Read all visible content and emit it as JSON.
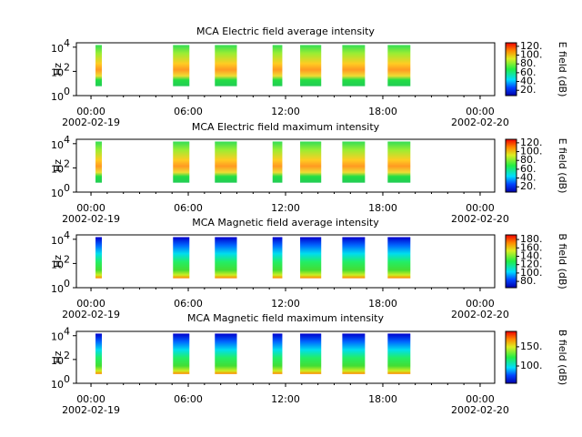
{
  "chart_data": [
    {
      "type": "spectrogram",
      "title": "MCA  Electric field average intensity",
      "ylabel": "Hz",
      "colorbar_label": "E field (dB)",
      "colormap": "electric",
      "xlim": [
        -0.9,
        24.9
      ],
      "xticks": [
        {
          "value": 0,
          "label": "00:00"
        },
        {
          "value": 6,
          "label": "06:00"
        },
        {
          "value": 12,
          "label": "12:00"
        },
        {
          "value": 18,
          "label": "18:00"
        },
        {
          "value": 24,
          "label": "00:00"
        }
      ],
      "date_labels": [
        {
          "value": 0,
          "label": "2002-02-19"
        },
        {
          "value": 24,
          "label": "2002-02-20"
        }
      ],
      "y_log": true,
      "ylim": [
        1,
        23000
      ],
      "yticks": [
        {
          "value": 1,
          "label": "10",
          "exponent": "0"
        },
        {
          "value": 100,
          "label": "10",
          "exponent": "2"
        },
        {
          "value": 10000,
          "label": "10",
          "exponent": "4"
        }
      ],
      "clim": [
        8,
        128
      ],
      "cticks": [
        {
          "value": 20,
          "label": "20."
        },
        {
          "value": 40,
          "label": "40."
        },
        {
          "value": 60,
          "label": "60."
        },
        {
          "value": 80,
          "label": "80."
        },
        {
          "value": 100,
          "label": "100."
        },
        {
          "value": 120,
          "label": "120."
        }
      ],
      "freq_range": [
        6,
        15000
      ],
      "segments": [
        [
          0.28,
          0.67
        ],
        [
          5.06,
          6.07
        ],
        [
          7.64,
          9.0
        ],
        [
          11.2,
          11.8
        ],
        [
          12.9,
          14.2
        ],
        [
          15.5,
          16.9
        ],
        [
          18.3,
          19.7
        ]
      ]
    },
    {
      "type": "spectrogram",
      "title": "MCA  Electric field maximum intensity",
      "ylabel": "Hz",
      "colorbar_label": "E field (dB)",
      "colormap": "electric",
      "xlim": [
        -0.9,
        24.9
      ],
      "xticks": [
        {
          "value": 0,
          "label": "00:00"
        },
        {
          "value": 6,
          "label": "06:00"
        },
        {
          "value": 12,
          "label": "12:00"
        },
        {
          "value": 18,
          "label": "18:00"
        },
        {
          "value": 24,
          "label": "00:00"
        }
      ],
      "date_labels": [
        {
          "value": 0,
          "label": "2002-02-19"
        },
        {
          "value": 24,
          "label": "2002-02-20"
        }
      ],
      "y_log": true,
      "ylim": [
        1,
        23000
      ],
      "yticks": [
        {
          "value": 1,
          "label": "10",
          "exponent": "0"
        },
        {
          "value": 100,
          "label": "10",
          "exponent": "2"
        },
        {
          "value": 10000,
          "label": "10",
          "exponent": "4"
        }
      ],
      "clim": [
        8,
        128
      ],
      "cticks": [
        {
          "value": 20,
          "label": "20."
        },
        {
          "value": 40,
          "label": "40."
        },
        {
          "value": 60,
          "label": "60."
        },
        {
          "value": 80,
          "label": "80."
        },
        {
          "value": 100,
          "label": "100."
        },
        {
          "value": 120,
          "label": "120."
        }
      ],
      "freq_range": [
        6,
        15000
      ],
      "segments": [
        [
          0.28,
          0.67
        ],
        [
          5.06,
          6.07
        ],
        [
          7.64,
          9.0
        ],
        [
          11.2,
          11.8
        ],
        [
          12.9,
          14.2
        ],
        [
          15.5,
          16.9
        ],
        [
          18.3,
          19.7
        ]
      ]
    },
    {
      "type": "spectrogram",
      "title": "MCA  Magnetic field average intensity",
      "ylabel": "Hz",
      "colorbar_label": "B field (dB)",
      "colormap": "magnetic",
      "xlim": [
        -0.9,
        24.9
      ],
      "xticks": [
        {
          "value": 0,
          "label": "00:00"
        },
        {
          "value": 6,
          "label": "06:00"
        },
        {
          "value": 12,
          "label": "12:00"
        },
        {
          "value": 18,
          "label": "18:00"
        },
        {
          "value": 24,
          "label": "00:00"
        }
      ],
      "date_labels": [
        {
          "value": 0,
          "label": "2002-02-19"
        },
        {
          "value": 24,
          "label": "2002-02-20"
        }
      ],
      "y_log": true,
      "ylim": [
        1,
        23000
      ],
      "yticks": [
        {
          "value": 1,
          "label": "10",
          "exponent": "0"
        },
        {
          "value": 100,
          "label": "10",
          "exponent": "2"
        },
        {
          "value": 10000,
          "label": "10",
          "exponent": "4"
        }
      ],
      "clim": [
        65,
        191
      ],
      "cticks": [
        {
          "value": 80,
          "label": "80."
        },
        {
          "value": 100,
          "label": "100."
        },
        {
          "value": 120,
          "label": "120."
        },
        {
          "value": 140,
          "label": "140."
        },
        {
          "value": 160,
          "label": "160."
        },
        {
          "value": 180,
          "label": "180."
        }
      ],
      "freq_range": [
        6,
        15000
      ],
      "segments": [
        [
          0.28,
          0.67
        ],
        [
          5.06,
          6.07
        ],
        [
          7.64,
          9.0
        ],
        [
          11.2,
          11.8
        ],
        [
          12.9,
          14.2
        ],
        [
          15.5,
          16.9
        ],
        [
          18.3,
          19.7
        ]
      ]
    },
    {
      "type": "spectrogram",
      "title": "MCA  Magnetic field maximum intensity",
      "ylabel": "Hz",
      "colorbar_label": "B field (dB)",
      "colormap": "magnetic",
      "xlim": [
        -0.9,
        24.9
      ],
      "xticks": [
        {
          "value": 0,
          "label": "00:00"
        },
        {
          "value": 6,
          "label": "06:00"
        },
        {
          "value": 12,
          "label": "12:00"
        },
        {
          "value": 18,
          "label": "18:00"
        },
        {
          "value": 24,
          "label": "00:00"
        }
      ],
      "date_labels": [
        {
          "value": 0,
          "label": "2002-02-19"
        },
        {
          "value": 24,
          "label": "2002-02-20"
        }
      ],
      "y_log": true,
      "ylim": [
        1,
        23000
      ],
      "yticks": [
        {
          "value": 1,
          "label": "10",
          "exponent": "0"
        },
        {
          "value": 100,
          "label": "10",
          "exponent": "2"
        },
        {
          "value": 10000,
          "label": "10",
          "exponent": "4"
        }
      ],
      "clim": [
        55,
        190
      ],
      "cticks": [
        {
          "value": 100,
          "label": "100."
        },
        {
          "value": 150,
          "label": "150."
        }
      ],
      "freq_range": [
        6,
        15000
      ],
      "segments": [
        [
          0.28,
          0.67
        ],
        [
          5.06,
          6.07
        ],
        [
          7.64,
          9.0
        ],
        [
          11.2,
          11.8
        ],
        [
          12.9,
          14.2
        ],
        [
          15.5,
          16.9
        ],
        [
          18.3,
          19.7
        ]
      ]
    }
  ]
}
